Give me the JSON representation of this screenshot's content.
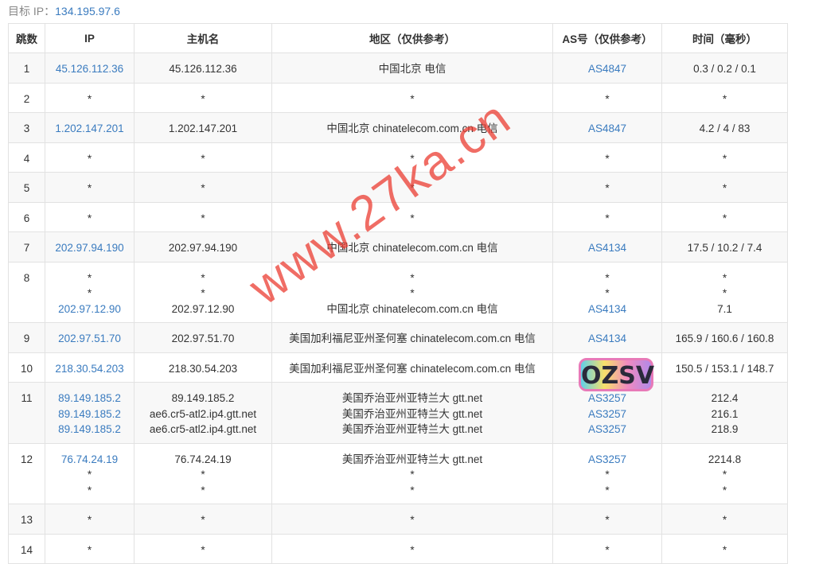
{
  "target": {
    "label": "目标 IP：",
    "ip": "134.195.97.6"
  },
  "headers": [
    "跳数",
    "IP",
    "主机名",
    "地区（仅供参考）",
    "AS号（仅供参考）",
    "时间（毫秒）"
  ],
  "rows": [
    {
      "hop": "1",
      "ip": [
        "45.126.112.36"
      ],
      "host": [
        "45.126.112.36"
      ],
      "region": [
        "中国北京 电信"
      ],
      "as": [
        "AS4847"
      ],
      "time": [
        "0.3 / 0.2 / 0.1"
      ]
    },
    {
      "hop": "2",
      "ip": [
        "*"
      ],
      "host": [
        "*"
      ],
      "region": [
        "*"
      ],
      "as": [
        "*"
      ],
      "time": [
        "*"
      ]
    },
    {
      "hop": "3",
      "ip": [
        "1.202.147.201"
      ],
      "host": [
        "1.202.147.201"
      ],
      "region": [
        "中国北京 chinatelecom.com.cn 电信"
      ],
      "as": [
        "AS4847"
      ],
      "time": [
        "4.2 / 4 / 83"
      ]
    },
    {
      "hop": "4",
      "ip": [
        "*"
      ],
      "host": [
        "*"
      ],
      "region": [
        "*"
      ],
      "as": [
        "*"
      ],
      "time": [
        "*"
      ]
    },
    {
      "hop": "5",
      "ip": [
        "*"
      ],
      "host": [
        "*"
      ],
      "region": [
        "*"
      ],
      "as": [
        "*"
      ],
      "time": [
        "*"
      ]
    },
    {
      "hop": "6",
      "ip": [
        "*"
      ],
      "host": [
        "*"
      ],
      "region": [
        "*"
      ],
      "as": [
        "*"
      ],
      "time": [
        "*"
      ]
    },
    {
      "hop": "7",
      "ip": [
        "202.97.94.190"
      ],
      "host": [
        "202.97.94.190"
      ],
      "region": [
        "中国北京 chinatelecom.com.cn 电信"
      ],
      "as": [
        "AS4134"
      ],
      "time": [
        "17.5 / 10.2 / 7.4"
      ]
    },
    {
      "hop": "8",
      "ip": [
        "*",
        "*",
        "202.97.12.90"
      ],
      "host": [
        "*",
        "*",
        "202.97.12.90"
      ],
      "region": [
        "*",
        "*",
        "中国北京 chinatelecom.com.cn 电信"
      ],
      "as": [
        "*",
        "*",
        "AS4134"
      ],
      "time": [
        "*",
        "*",
        "7.1"
      ]
    },
    {
      "hop": "9",
      "ip": [
        "202.97.51.70"
      ],
      "host": [
        "202.97.51.70"
      ],
      "region": [
        "美国加利福尼亚州圣何塞 chinatelecom.com.cn 电信"
      ],
      "as": [
        "AS4134"
      ],
      "time": [
        "165.9 / 160.6 / 160.8"
      ]
    },
    {
      "hop": "10",
      "ip": [
        "218.30.54.203"
      ],
      "host": [
        "218.30.54.203"
      ],
      "region": [
        "美国加利福尼亚州圣何塞 chinatelecom.com.cn 电信"
      ],
      "as": [
        "AS4134"
      ],
      "time": [
        "150.5 / 153.1 / 148.7"
      ]
    },
    {
      "hop": "11",
      "ip": [
        "89.149.185.2",
        "89.149.185.2",
        "89.149.185.2"
      ],
      "host": [
        "89.149.185.2",
        "ae6.cr5-atl2.ip4.gtt.net",
        "ae6.cr5-atl2.ip4.gtt.net"
      ],
      "region": [
        "美国乔治亚州亚特兰大 gtt.net",
        "美国乔治亚州亚特兰大 gtt.net",
        "美国乔治亚州亚特兰大 gtt.net"
      ],
      "as": [
        "AS3257",
        "AS3257",
        "AS3257"
      ],
      "time": [
        "212.4",
        "216.1",
        "218.9"
      ]
    },
    {
      "hop": "12",
      "ip": [
        "76.74.24.19",
        "*",
        "*"
      ],
      "host": [
        "76.74.24.19",
        "*",
        "*"
      ],
      "region": [
        "美国乔治亚州亚特兰大 gtt.net",
        "*",
        "*"
      ],
      "as": [
        "AS3257",
        "*",
        "*"
      ],
      "time": [
        "2214.8",
        "*",
        "*"
      ]
    },
    {
      "hop": "13",
      "ip": [
        "*"
      ],
      "host": [
        "*"
      ],
      "region": [
        "*"
      ],
      "as": [
        "*"
      ],
      "time": [
        "*"
      ]
    },
    {
      "hop": "14",
      "ip": [
        "*"
      ],
      "host": [
        "*"
      ],
      "region": [
        "*"
      ],
      "as": [
        "*"
      ],
      "time": [
        "*"
      ]
    }
  ],
  "watermark": "www.27ka.cn",
  "badge": "OZSV",
  "colors": {
    "link": "#3a7bbf",
    "watermark": "#eb3c32",
    "row_alt": "#f8f8f8"
  }
}
